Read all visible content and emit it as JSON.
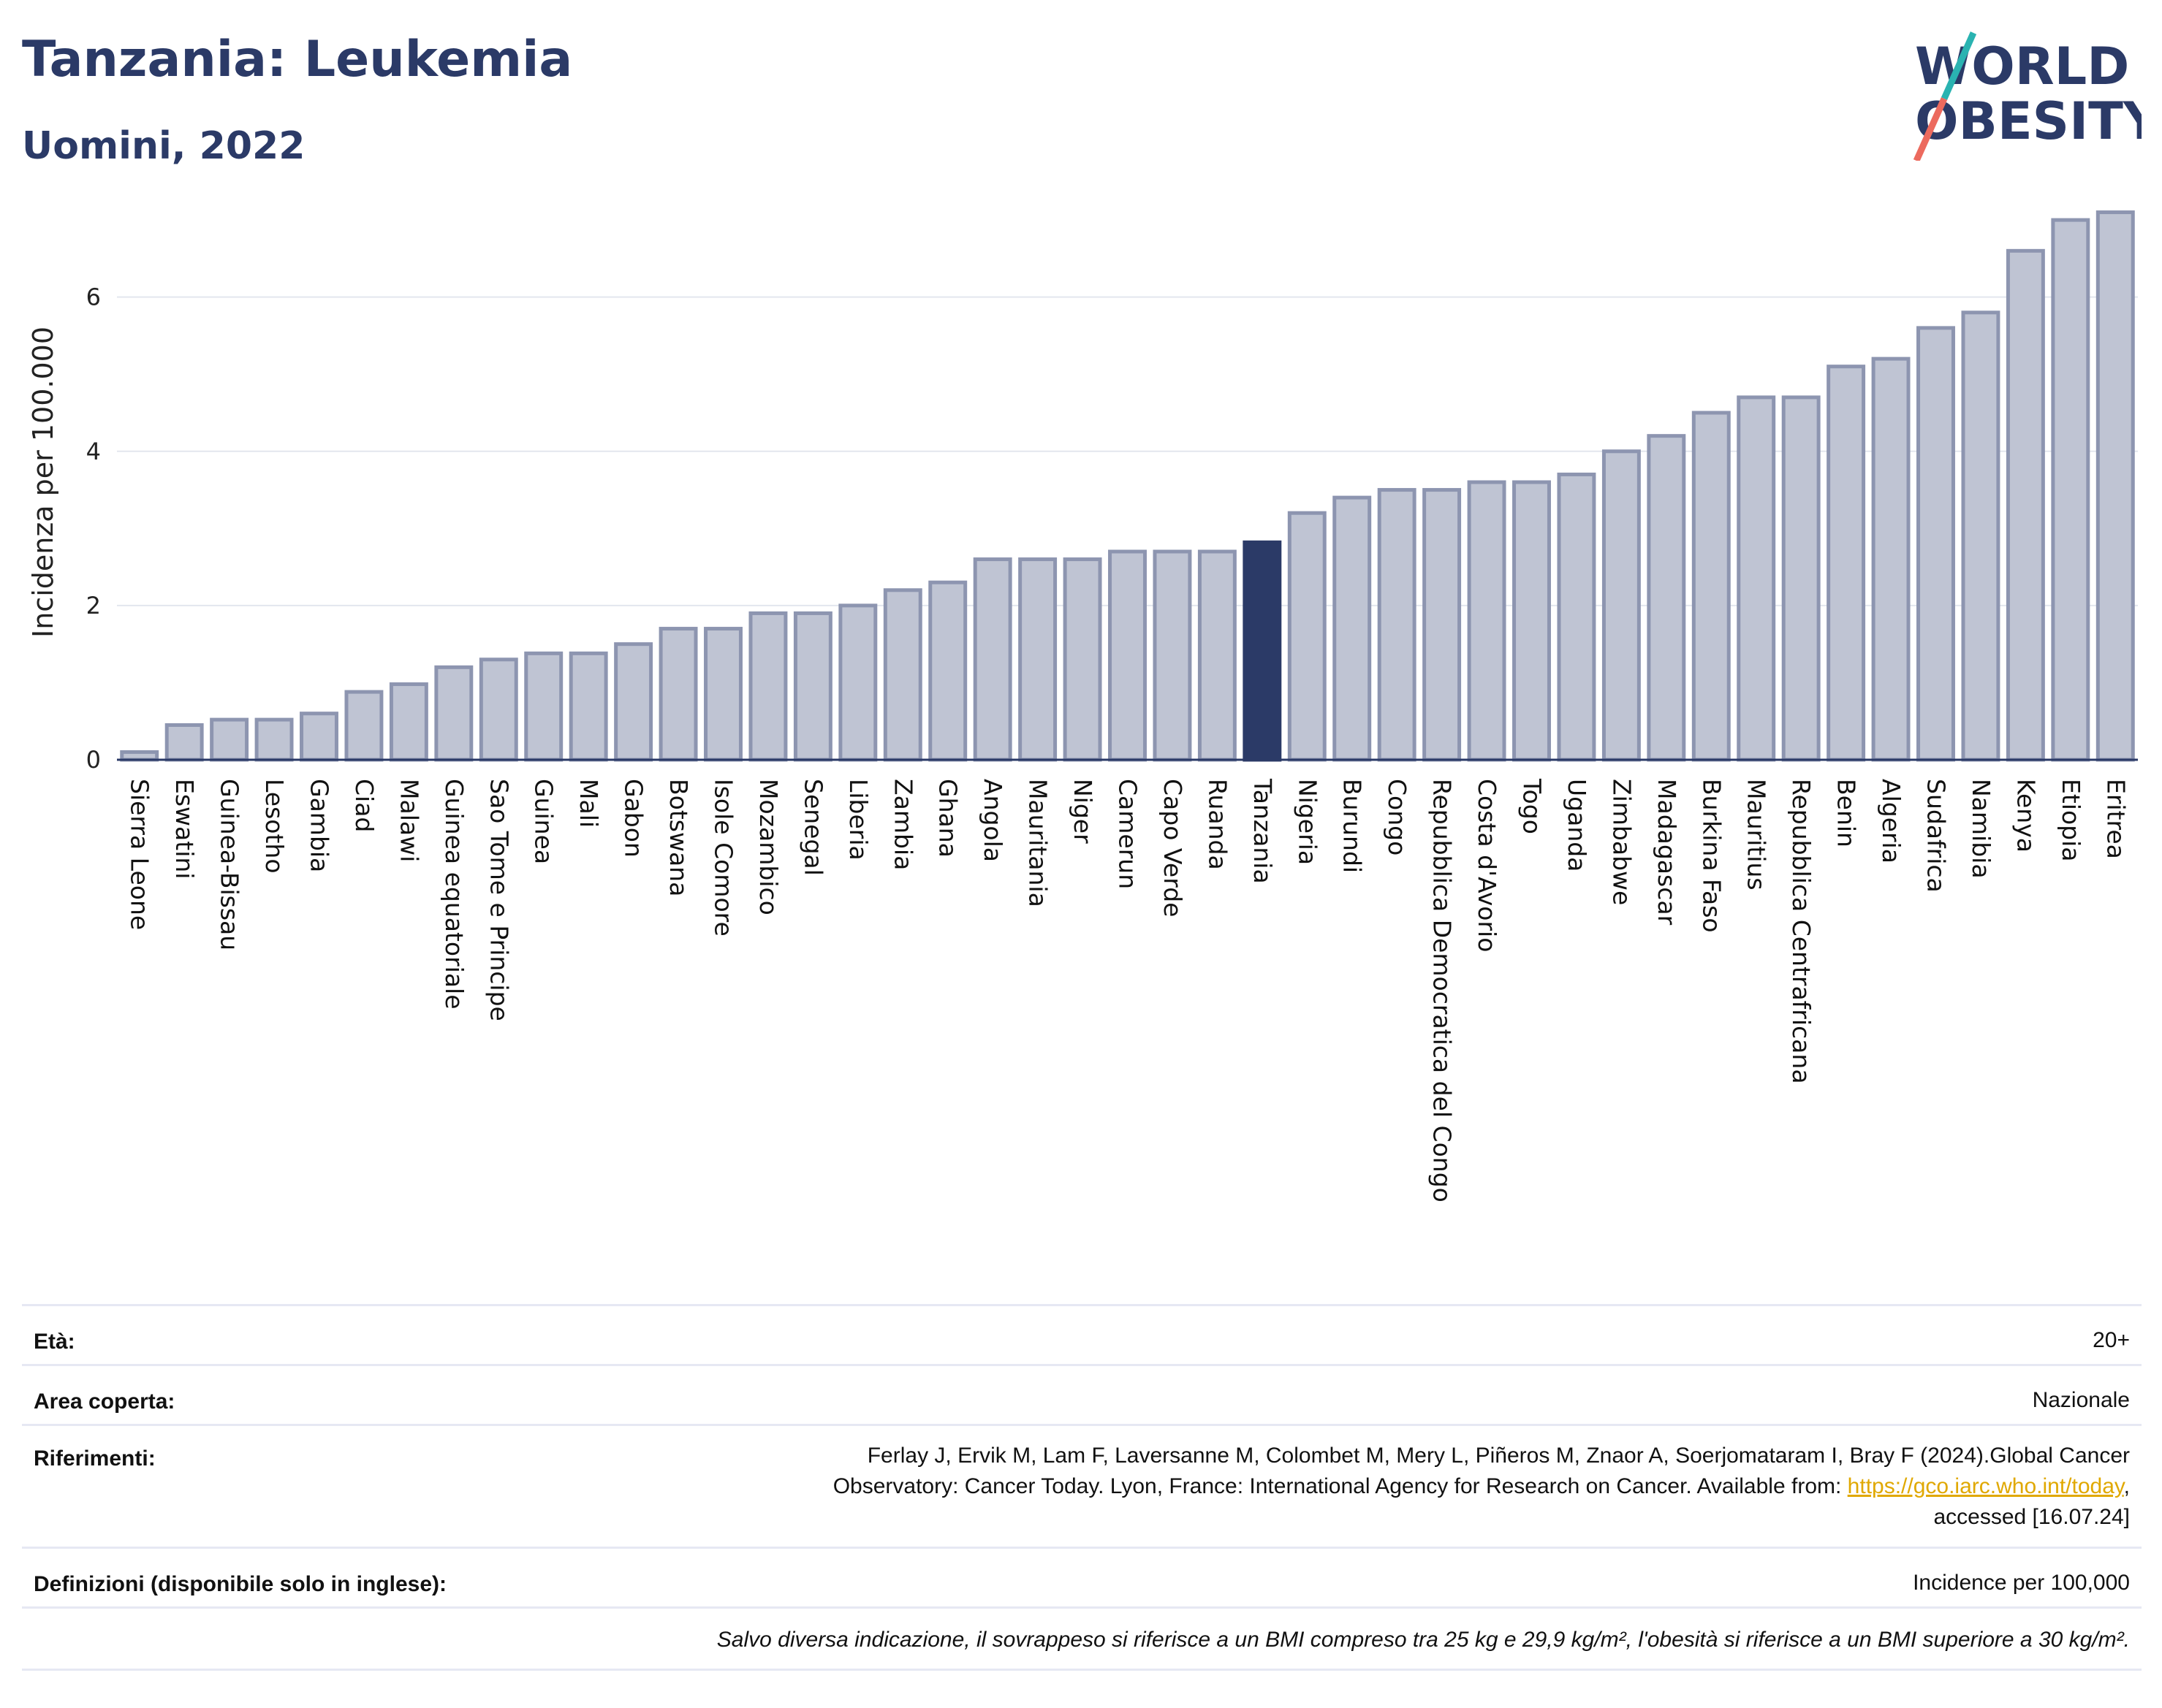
{
  "header": {
    "title": "Tanzania: Leukemia",
    "subtitle": "Uomini, 2022",
    "logo_line1": "WORLD",
    "logo_line2": "OBESITY"
  },
  "chart_data": {
    "type": "bar",
    "ylabel": "Incidenza per 100.000",
    "ylim": [
      0,
      7.2
    ],
    "yticks": [
      0,
      2,
      4,
      6
    ],
    "highlight": "Tanzania",
    "colors": {
      "bar": "#bfc4d3",
      "bar_border": "#8d95b0",
      "highlight": "#2b3a67",
      "grid": "#e3e6ee"
    },
    "categories": [
      "Sierra Leone",
      "Eswatini",
      "Guinea-Bissau",
      "Lesotho",
      "Gambia",
      "Ciad",
      "Malawi",
      "Guinea equatoriale",
      "Sao Tome e Principe",
      "Guinea",
      "Mali",
      "Gabon",
      "Botswana",
      "Isole Comore",
      "Mozambico",
      "Senegal",
      "Liberia",
      "Zambia",
      "Ghana",
      "Angola",
      "Mauritania",
      "Niger",
      "Camerun",
      "Capo Verde",
      "Ruanda",
      "Tanzania",
      "Nigeria",
      "Burundi",
      "Congo",
      "Repubblica Democratica del Congo",
      "Costa d'Avorio",
      "Togo",
      "Uganda",
      "Zimbabwe",
      "Madagascar",
      "Burkina Faso",
      "Mauritius",
      "Repubblica Centrafricana",
      "Benin",
      "Algeria",
      "Sudafrica",
      "Namibia",
      "Kenya",
      "Etiopia",
      "Eritrea"
    ],
    "values": [
      0.1,
      0.45,
      0.52,
      0.52,
      0.6,
      0.88,
      0.98,
      1.2,
      1.3,
      1.38,
      1.38,
      1.5,
      1.7,
      1.7,
      1.9,
      1.9,
      2.0,
      2.2,
      2.3,
      2.6,
      2.6,
      2.6,
      2.7,
      2.7,
      2.7,
      2.82,
      3.2,
      3.4,
      3.5,
      3.5,
      3.6,
      3.6,
      3.7,
      4.0,
      4.2,
      4.5,
      4.7,
      4.7,
      5.1,
      5.2,
      5.6,
      5.8,
      6.6,
      7.0,
      7.1
    ]
  },
  "metadata": {
    "eta_label": "Età:",
    "eta_value": "20+",
    "area_label": "Area coperta:",
    "area_value": "Nazionale",
    "ref_label": "Riferimenti:",
    "ref_line1": "Ferlay J, Ervik M, Lam F, Laversanne M, Colombet M, Mery L, Piñeros M, Znaor A, Soerjomataram I, Bray F (2024).Global Cancer",
    "ref_line2": "Observatory: Cancer Today. Lyon, France: International Agency for Research on Cancer. Available from:",
    "ref_link": "https://gco.iarc.who.int/today",
    "ref_line3": "accessed [16.07.24]",
    "def_label": "Definizioni (disponibile solo in inglese):",
    "def_value": "Incidence per 100,000",
    "note": "Salvo diversa indicazione, il sovrappeso si riferisce a un BMI compreso tra 25 kg e 29,9 kg/m², l'obesità si riferisce a un BMI superiore a 30 kg/m²."
  }
}
